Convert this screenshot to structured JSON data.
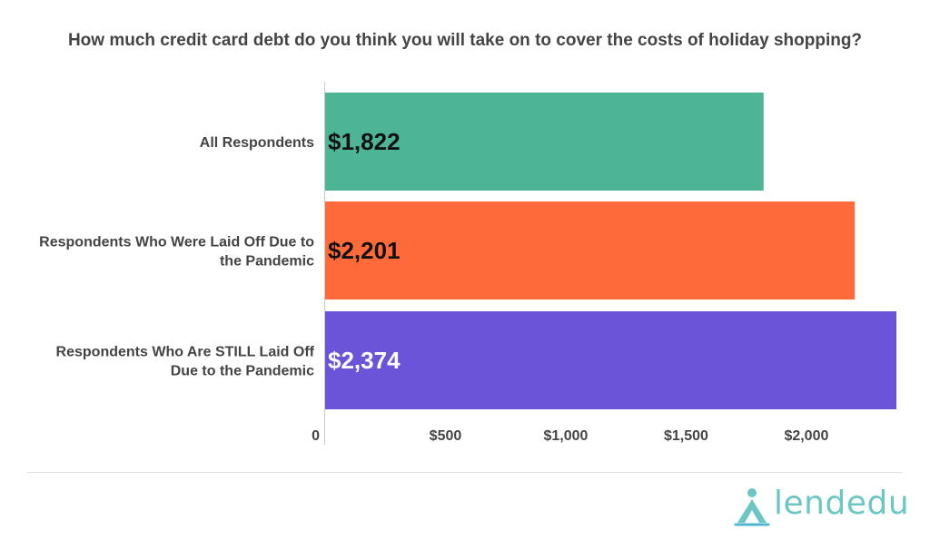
{
  "chart_data": {
    "type": "bar",
    "orientation": "horizontal",
    "title": "How much credit card debt do you think you will take on to cover the costs of holiday shopping?",
    "categories": [
      "All Respondents",
      "Respondents Who Were Laid Off Due to the Pandemic",
      "Respondents Who Are STILL Laid Off Due to the Pandemic"
    ],
    "category_lines": [
      [
        "All Respondents"
      ],
      [
        "Respondents Who Were Laid Off Due to",
        "the Pandemic"
      ],
      [
        "Respondents Who Are STILL Laid Off",
        "Due to the Pandemic"
      ]
    ],
    "values": [
      1822,
      2201,
      2374
    ],
    "data_labels": [
      "$1,822",
      "$2,201",
      "$2,374"
    ],
    "colors": [
      "#4db596",
      "#ff6a3b",
      "#6c54d9"
    ],
    "label_colors": [
      "#111111",
      "#111111",
      "#ffffff"
    ],
    "xlim": [
      0,
      2374
    ],
    "x_ticks": [
      0,
      500,
      1000,
      1500,
      2000
    ],
    "x_tick_labels": [
      "0",
      "$500",
      "$1,000",
      "$1,500",
      "$2,000"
    ],
    "grid": false,
    "legend": "none"
  },
  "brand": {
    "logo_text": "lendedu",
    "logo_icon": "lendedu-logo-icon",
    "logo_color": "#6cc7c4"
  }
}
